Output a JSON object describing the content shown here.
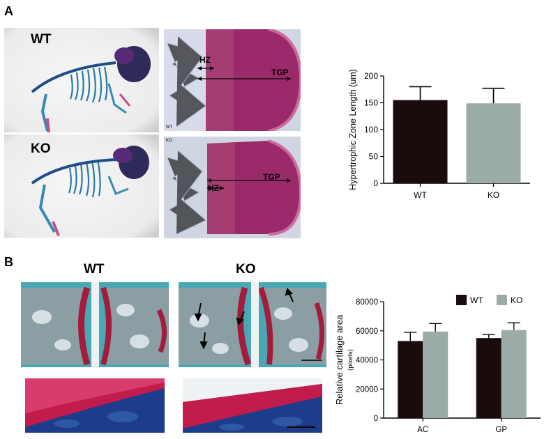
{
  "panel_a": {
    "letter": "A",
    "wt_label": "WT",
    "ko_label": "KO",
    "hist_wt_annotations": {
      "hz": "HZ",
      "tgp": "TGP",
      "corner": "WT"
    },
    "hist_ko_annotations": {
      "hz": "HZ",
      "tgp": "TGP",
      "corner": "KO"
    }
  },
  "panel_b": {
    "letter": "B",
    "wt_label": "WT",
    "ko_label": "KO"
  },
  "colors": {
    "wt_bar": "#1a0c0c",
    "ko_bar": "#9aaba8",
    "cartilage": "#b0205a",
    "bone_stain": "#2d8a9a",
    "deep_blue": "#1d3c8c"
  },
  "chart_data": [
    {
      "type": "bar",
      "ylabel": "Hypertrophic Zone Length (um)",
      "categories": [
        "WT",
        "KO"
      ],
      "values": [
        155,
        149
      ],
      "errors": [
        25,
        28
      ],
      "ylim": [
        0,
        200
      ],
      "yticks": [
        "0",
        "50",
        "100",
        "150",
        "200"
      ],
      "grid": false
    },
    {
      "type": "bar",
      "ylabel": "Relative cartilage area",
      "ylabel_units": "(pixels)",
      "categories": [
        "AC",
        "GP"
      ],
      "series": [
        {
          "name": "WT",
          "values": [
            53000,
            55000
          ],
          "errors": [
            6000,
            2500
          ]
        },
        {
          "name": "KO",
          "values": [
            59500,
            60500
          ],
          "errors": [
            5500,
            5000
          ]
        }
      ],
      "ylim": [
        0,
        80000
      ],
      "yticks": [
        "0",
        "20000",
        "40000",
        "60000",
        "80000"
      ],
      "legend": "top-right",
      "grid": false
    }
  ]
}
